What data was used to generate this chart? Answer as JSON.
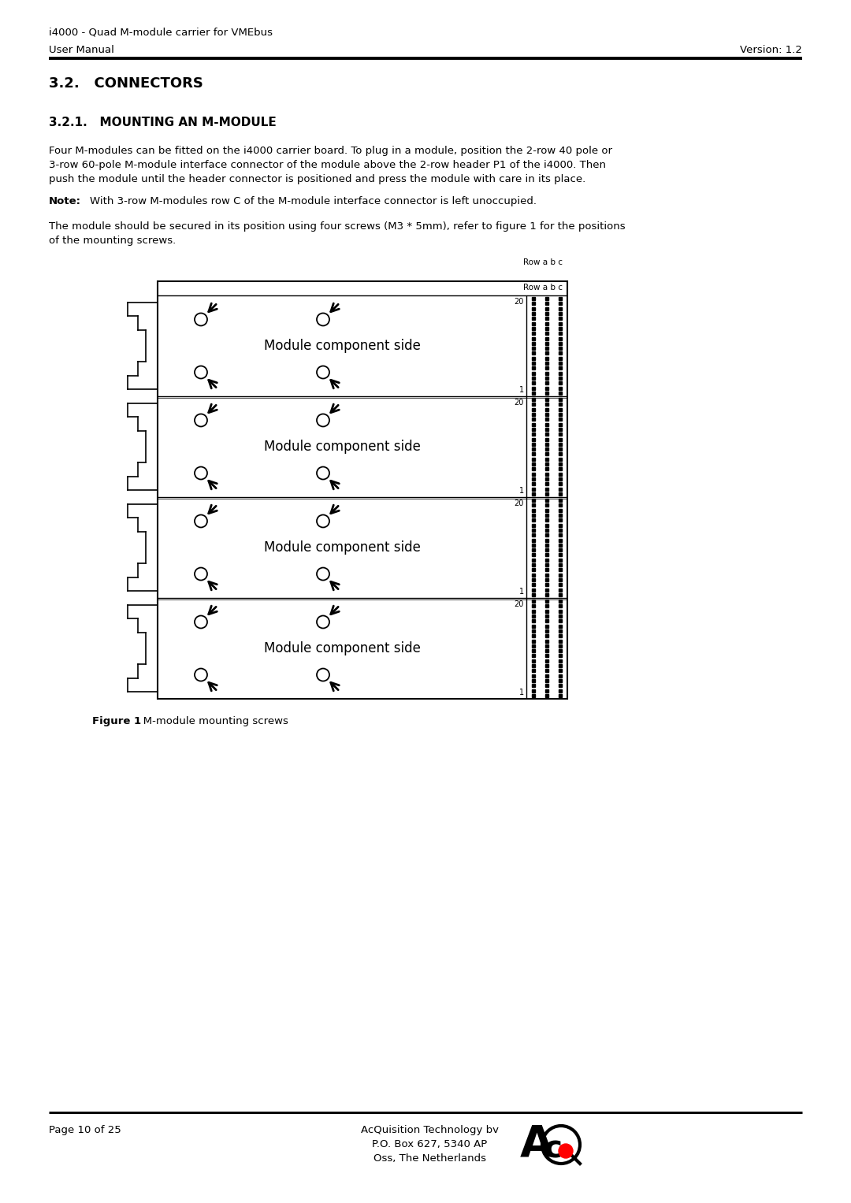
{
  "page_title_line1": "i4000 - Quad M-module carrier for VMEbus",
  "page_title_line2": "User Manual",
  "version": "Version: 1.2",
  "section_number": "3.2.",
  "section_name": "CONNECTORS",
  "subsection_number": "3.2.1.",
  "subsection_name": "MOUNTING AN M-MODULE",
  "body_text1_line1": "Four M-modules can be fitted on the i4000 carrier board. To plug in a module, position the 2-row 40 pole or",
  "body_text1_line2": "3-row 60-pole M-module interface connector of the module above the 2-row header P1 of the i4000. Then",
  "body_text1_line3": "push the module until the header connector is positioned and press the module with care in its place.",
  "note_label": "Note:",
  "note_text": "With 3-row M-modules row C of the M-module interface connector is left unoccupied.",
  "body_text2_line1": "The module should be secured in its position using four screws (M3 * 5mm), refer to figure 1 for the positions",
  "body_text2_line2": "of the mounting screws.",
  "module_label": "Module component side",
  "row_label": "Row a b c",
  "num_modules": 4,
  "figure_caption_bold": "Figure 1",
  "figure_caption_rest": "   M-module mounting screws",
  "footer_left": "Page 10 of 25",
  "footer_right1": "AcQuisition Technology bv",
  "footer_right2": "P.O. Box 627, 5340 AP",
  "footer_right3": "Oss, The Netherlands",
  "bg_color": "#ffffff",
  "text_color": "#000000"
}
